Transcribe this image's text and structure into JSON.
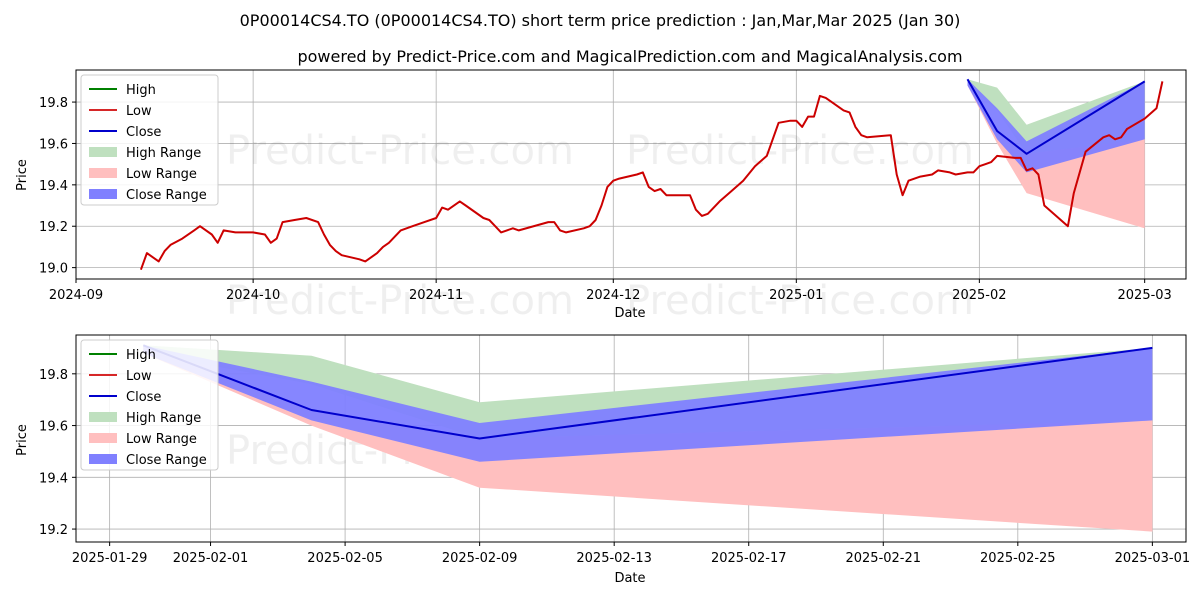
{
  "title": "0P00014CS4.TO (0P00014CS4.TO) short term price prediction : Jan,Mar,Mar 2025 (Jan 30)",
  "subtitle": "powered by Predict-Price.com and MagicalPrediction.com and MagicalAnalysis.com",
  "watermark": "Predict-Price.com",
  "colors": {
    "high": "#008000",
    "low": "#d62728",
    "low_line": "#cc0000",
    "close": "#0000cc",
    "high_range": "#bfe0bf",
    "low_range": "#ffbfbf",
    "close_range": "#8080ff"
  },
  "chart_data": [
    {
      "type": "line",
      "xlabel": "Date",
      "ylabel": "Price",
      "xlim": [
        "2024-09-01",
        "2025-03-08"
      ],
      "ylim": [
        18.945,
        19.955
      ],
      "grid": true,
      "legend_position": "top-left",
      "xticks": [
        {
          "value": "2024-09-01",
          "label": "2024-09"
        },
        {
          "value": "2024-10-01",
          "label": "2024-10"
        },
        {
          "value": "2024-11-01",
          "label": "2024-11"
        },
        {
          "value": "2024-12-01",
          "label": "2024-12"
        },
        {
          "value": "2025-01-01",
          "label": "2025-01"
        },
        {
          "value": "2025-02-01",
          "label": "2025-02"
        },
        {
          "value": "2025-03-01",
          "label": "2025-03"
        }
      ],
      "yticks": [
        19.0,
        19.2,
        19.4,
        19.6,
        19.8
      ],
      "legend": [
        "High",
        "Low",
        "Close",
        "High Range",
        "Low Range",
        "Close Range"
      ],
      "history": [
        [
          "2024-09-12",
          18.99
        ],
        [
          "2024-09-13",
          19.07
        ],
        [
          "2024-09-15",
          19.03
        ],
        [
          "2024-09-16",
          19.08
        ],
        [
          "2024-09-17",
          19.11
        ],
        [
          "2024-09-19",
          19.14
        ],
        [
          "2024-09-21",
          19.18
        ],
        [
          "2024-09-22",
          19.2
        ],
        [
          "2024-09-24",
          19.16
        ],
        [
          "2024-09-25",
          19.12
        ],
        [
          "2024-09-26",
          19.18
        ],
        [
          "2024-09-28",
          19.17
        ],
        [
          "2024-10-01",
          19.17
        ],
        [
          "2024-10-03",
          19.16
        ],
        [
          "2024-10-04",
          19.12
        ],
        [
          "2024-10-05",
          19.14
        ],
        [
          "2024-10-06",
          19.22
        ],
        [
          "2024-10-08",
          19.23
        ],
        [
          "2024-10-10",
          19.24
        ],
        [
          "2024-10-12",
          19.22
        ],
        [
          "2024-10-13",
          19.16
        ],
        [
          "2024-10-14",
          19.11
        ],
        [
          "2024-10-15",
          19.08
        ],
        [
          "2024-10-16",
          19.06
        ],
        [
          "2024-10-19",
          19.04
        ],
        [
          "2024-10-20",
          19.03
        ],
        [
          "2024-10-22",
          19.07
        ],
        [
          "2024-10-23",
          19.1
        ],
        [
          "2024-10-24",
          19.12
        ],
        [
          "2024-10-26",
          19.18
        ],
        [
          "2024-10-28",
          19.2
        ],
        [
          "2024-10-30",
          19.22
        ],
        [
          "2024-11-01",
          19.24
        ],
        [
          "2024-11-02",
          19.29
        ],
        [
          "2024-11-03",
          19.28
        ],
        [
          "2024-11-05",
          19.32
        ],
        [
          "2024-11-06",
          19.3
        ],
        [
          "2024-11-09",
          19.24
        ],
        [
          "2024-11-10",
          19.23
        ],
        [
          "2024-11-11",
          19.2
        ],
        [
          "2024-11-12",
          19.17
        ],
        [
          "2024-11-14",
          19.19
        ],
        [
          "2024-11-15",
          19.18
        ],
        [
          "2024-11-20",
          19.22
        ],
        [
          "2024-11-21",
          19.22
        ],
        [
          "2024-11-22",
          19.18
        ],
        [
          "2024-11-23",
          19.17
        ],
        [
          "2024-11-26",
          19.19
        ],
        [
          "2024-11-27",
          19.2
        ],
        [
          "2024-11-28",
          19.23
        ],
        [
          "2024-11-29",
          19.3
        ],
        [
          "2024-11-30",
          19.39
        ],
        [
          "2024-12-01",
          19.42
        ],
        [
          "2024-12-02",
          19.43
        ],
        [
          "2024-12-05",
          19.45
        ],
        [
          "2024-12-06",
          19.46
        ],
        [
          "2024-12-07",
          19.39
        ],
        [
          "2024-12-08",
          19.37
        ],
        [
          "2024-12-09",
          19.38
        ],
        [
          "2024-12-10",
          19.35
        ],
        [
          "2024-12-13",
          19.35
        ],
        [
          "2024-12-14",
          19.35
        ],
        [
          "2024-12-15",
          19.28
        ],
        [
          "2024-12-16",
          19.25
        ],
        [
          "2024-12-17",
          19.26
        ],
        [
          "2024-12-19",
          19.32
        ],
        [
          "2024-12-21",
          19.37
        ],
        [
          "2024-12-23",
          19.42
        ],
        [
          "2024-12-25",
          19.49
        ],
        [
          "2024-12-27",
          19.54
        ],
        [
          "2024-12-29",
          19.7
        ],
        [
          "2024-12-31",
          19.71
        ],
        [
          "2025-01-01",
          19.71
        ],
        [
          "2025-01-02",
          19.68
        ],
        [
          "2025-01-03",
          19.73
        ],
        [
          "2025-01-04",
          19.73
        ],
        [
          "2025-01-05",
          19.83
        ],
        [
          "2025-01-06",
          19.82
        ],
        [
          "2025-01-07",
          19.8
        ],
        [
          "2025-01-09",
          19.76
        ],
        [
          "2025-01-10",
          19.75
        ],
        [
          "2025-01-11",
          19.68
        ],
        [
          "2025-01-12",
          19.64
        ],
        [
          "2025-01-13",
          19.63
        ],
        [
          "2025-01-17",
          19.64
        ],
        [
          "2025-01-18",
          19.45
        ],
        [
          "2025-01-19",
          19.35
        ],
        [
          "2025-01-20",
          19.42
        ],
        [
          "2025-01-22",
          19.44
        ],
        [
          "2025-01-24",
          19.45
        ],
        [
          "2025-01-25",
          19.47
        ],
        [
          "2025-01-27",
          19.46
        ],
        [
          "2025-01-28",
          19.45
        ],
        [
          "2025-01-30",
          19.46
        ],
        [
          "2025-01-31",
          19.46
        ],
        [
          "2025-02-01",
          19.49
        ],
        [
          "2025-02-02",
          19.5
        ],
        [
          "2025-02-03",
          19.51
        ],
        [
          "2025-02-04",
          19.54
        ],
        [
          "2025-02-07",
          19.53
        ],
        [
          "2025-02-08",
          19.53
        ],
        [
          "2025-02-09",
          19.47
        ],
        [
          "2025-02-10",
          19.48
        ],
        [
          "2025-02-11",
          19.45
        ],
        [
          "2025-02-12",
          19.3
        ],
        [
          "2025-02-16",
          19.2
        ],
        [
          "2025-02-17",
          19.36
        ],
        [
          "2025-02-19",
          19.56
        ],
        [
          "2025-02-22",
          19.63
        ],
        [
          "2025-02-23",
          19.64
        ],
        [
          "2025-02-24",
          19.62
        ],
        [
          "2025-02-25",
          19.63
        ],
        [
          "2025-02-26",
          19.67
        ],
        [
          "2025-03-01",
          19.72
        ],
        [
          "2025-03-03",
          19.77
        ],
        [
          "2025-03-04",
          19.9
        ]
      ],
      "forecast": {
        "dates": [
          "2025-01-30",
          "2025-02-04",
          "2025-02-09",
          "2025-03-01"
        ],
        "close": [
          19.91,
          19.66,
          19.55,
          19.9
        ],
        "high_range": [
          [
            19.88,
            19.91
          ],
          [
            19.76,
            19.87
          ],
          [
            19.55,
            19.69
          ],
          [
            19.62,
            19.9
          ]
        ],
        "low_range": [
          [
            19.88,
            19.91
          ],
          [
            19.6,
            19.66
          ],
          [
            19.36,
            19.55
          ],
          [
            19.19,
            19.62
          ]
        ],
        "close_range": [
          [
            19.88,
            19.91
          ],
          [
            19.62,
            19.77
          ],
          [
            19.46,
            19.61
          ],
          [
            19.62,
            19.9
          ]
        ]
      }
    },
    {
      "type": "line",
      "xlabel": "Date",
      "ylabel": "Price",
      "xlim": [
        "2025-01-28",
        "2025-03-02"
      ],
      "ylim": [
        19.15,
        19.95
      ],
      "grid": true,
      "legend_position": "top-left",
      "xticks": [
        {
          "value": "2025-01-29",
          "label": "2025-01-29"
        },
        {
          "value": "2025-02-01",
          "label": "2025-02-01"
        },
        {
          "value": "2025-02-05",
          "label": "2025-02-05"
        },
        {
          "value": "2025-02-09",
          "label": "2025-02-09"
        },
        {
          "value": "2025-02-13",
          "label": "2025-02-13"
        },
        {
          "value": "2025-02-17",
          "label": "2025-02-17"
        },
        {
          "value": "2025-02-21",
          "label": "2025-02-21"
        },
        {
          "value": "2025-02-25",
          "label": "2025-02-25"
        },
        {
          "value": "2025-03-01",
          "label": "2025-03-01"
        }
      ],
      "yticks": [
        19.2,
        19.4,
        19.6,
        19.8
      ],
      "legend": [
        "High",
        "Low",
        "Close",
        "High Range",
        "Low Range",
        "Close Range"
      ],
      "forecast": {
        "dates": [
          "2025-01-30",
          "2025-02-04",
          "2025-02-09",
          "2025-03-01"
        ],
        "close": [
          19.91,
          19.66,
          19.55,
          19.9
        ],
        "high_range": [
          [
            19.88,
            19.91
          ],
          [
            19.76,
            19.87
          ],
          [
            19.55,
            19.69
          ],
          [
            19.62,
            19.9
          ]
        ],
        "low_range": [
          [
            19.88,
            19.91
          ],
          [
            19.6,
            19.66
          ],
          [
            19.36,
            19.55
          ],
          [
            19.19,
            19.62
          ]
        ],
        "close_range": [
          [
            19.88,
            19.91
          ],
          [
            19.62,
            19.77
          ],
          [
            19.46,
            19.61
          ],
          [
            19.62,
            19.9
          ]
        ]
      }
    }
  ]
}
